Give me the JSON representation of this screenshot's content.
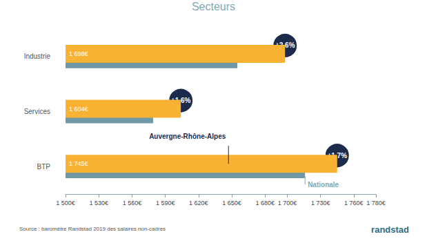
{
  "chart_data": {
    "type": "bar",
    "orientation": "horizontal",
    "title": "Secteurs",
    "categories": [
      "Industrie",
      "Services",
      "BTP"
    ],
    "series": [
      {
        "name": "Auvergne-Rhône-Alpes",
        "color": "#f9b233",
        "values": [
          1698,
          1604,
          1745
        ],
        "value_labels": [
          "1 698€",
          "1 604€",
          "1 745€"
        ]
      },
      {
        "name": "Nationale",
        "color": "#6e98a5",
        "values": [
          1655,
          1579,
          1716
        ]
      }
    ],
    "annotations": [
      {
        "category": "Industrie",
        "text": "+2,6%"
      },
      {
        "category": "Services",
        "text": "+1,6%"
      },
      {
        "category": "BTP",
        "text": "+1,7%"
      }
    ],
    "xlim": [
      1500,
      1780
    ],
    "xticks": [
      {
        "value": 1500,
        "label": "1 500€"
      },
      {
        "value": 1530,
        "label": "1 530€"
      },
      {
        "value": 1560,
        "label": "1 560€"
      },
      {
        "value": 1590,
        "label": "1 590€"
      },
      {
        "value": 1620,
        "label": "1 620€"
      },
      {
        "value": 1650,
        "label": "1 650€"
      },
      {
        "value": 1680,
        "label": "1 680€"
      },
      {
        "value": 1700,
        "label": "1 700€"
      },
      {
        "value": 1730,
        "label": "1 730€"
      },
      {
        "value": 1760,
        "label": "1 760€"
      },
      {
        "value": 1780,
        "label": "1 780€"
      }
    ],
    "grid": false,
    "data_labels": true,
    "source": "Source : baromètre Randstad 2019 des salaires non-cadres",
    "logo": "randstad"
  }
}
